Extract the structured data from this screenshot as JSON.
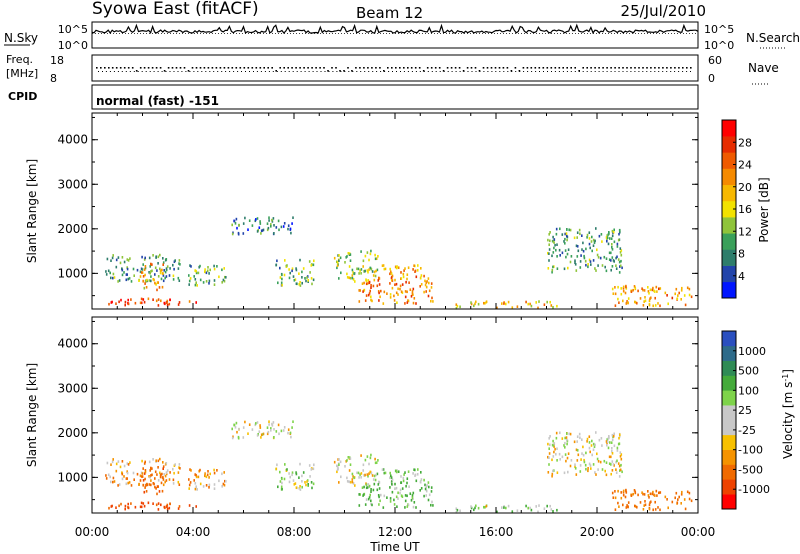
{
  "header": {
    "station": "Syowa East (fitACF)",
    "beam": "Beam 12",
    "date": "25/Jul/2010"
  },
  "top_panels": {
    "nsky_label": "N.Sky",
    "nsearch_label": "N.Search",
    "nsky_ticks": [
      "10^5",
      "10^0"
    ],
    "nsearch_ticks": [
      "10^5",
      "10^0"
    ],
    "freq_label_1": "Freq.",
    "freq_label_2": "[MHz]",
    "freq_ticks": [
      "18",
      "8"
    ],
    "nave_label": "Nave",
    "nave_ticks": [
      "60",
      "0"
    ],
    "cpid_label": "CPID",
    "cpid_value": "normal (fast) -151"
  },
  "colorbars": {
    "power": {
      "label": "Power [dB]",
      "ticks": [
        "28",
        "24",
        "20",
        "16",
        "12",
        "8",
        "4"
      ],
      "colors": [
        "#0015ff",
        "#2244aa",
        "#2e7d6b",
        "#3aa05a",
        "#8fc43a",
        "#f2e200",
        "#f7b800",
        "#f58a00",
        "#ef5a00",
        "#e62c00",
        "#ff0000"
      ]
    },
    "velocity": {
      "label": "Velocity [m s-1]",
      "label_main": "Velocity [m s",
      "label_sup": "-1",
      "label_end": "]",
      "ticks": [
        "1000",
        "500",
        "100",
        "25",
        "-25",
        "-100",
        "-500",
        "-1000"
      ],
      "colors": [
        "#2a4fbf",
        "#2e6b8a",
        "#2f8b55",
        "#44aa3a",
        "#7ed34a",
        "#c8c8c8",
        "#c8c8c8",
        "#f7c000",
        "#f59300",
        "#f06a00",
        "#ee4200",
        "#ff0000"
      ]
    }
  },
  "chart_data": {
    "type": "heatmap",
    "xlabel": "Time UT",
    "ylabel": "Slant Range [km]",
    "x_ticks": [
      "00:00",
      "04:00",
      "08:00",
      "12:00",
      "16:00",
      "20:00",
      "00:00"
    ],
    "y_ticks": [
      "1000",
      "2000",
      "3000",
      "4000"
    ],
    "xlim_hours": [
      0,
      24
    ],
    "ylim_km": [
      200,
      4600
    ],
    "panels": [
      "Power [dB]",
      "Velocity [m s-1]"
    ],
    "echo_regions": [
      {
        "t0": 0.3,
        "t1": 4.2,
        "r0": 250,
        "r1": 420,
        "power": 26,
        "velocity": -300
      },
      {
        "t0": 0.5,
        "t1": 3.5,
        "r0": 800,
        "r1": 1400,
        "power": 8,
        "velocity": -80
      },
      {
        "t0": 1.8,
        "t1": 2.8,
        "r0": 600,
        "r1": 1200,
        "power": 18,
        "velocity": -200
      },
      {
        "t0": 3.8,
        "t1": 5.3,
        "r0": 700,
        "r1": 1200,
        "power": 10,
        "velocity": -60
      },
      {
        "t0": 5.5,
        "t1": 8.0,
        "r0": 1850,
        "r1": 2250,
        "power": 6,
        "velocity": 0
      },
      {
        "t0": 7.2,
        "t1": 8.8,
        "r0": 700,
        "r1": 1300,
        "power": 10,
        "velocity": 50
      },
      {
        "t0": 9.5,
        "t1": 11.3,
        "r0": 800,
        "r1": 1500,
        "power": 12,
        "velocity": 10
      },
      {
        "t0": 10.5,
        "t1": 13.5,
        "r0": 300,
        "r1": 900,
        "power": 22,
        "velocity": 110
      },
      {
        "t0": 11.3,
        "t1": 13.2,
        "r0": 900,
        "r1": 1200,
        "power": 20,
        "velocity": 80
      },
      {
        "t0": 14.3,
        "t1": 16.0,
        "r0": 200,
        "r1": 350,
        "power": 16,
        "velocity": 40
      },
      {
        "t0": 16.0,
        "t1": 18.5,
        "r0": 200,
        "r1": 350,
        "power": 18,
        "velocity": 60
      },
      {
        "t0": 18.0,
        "t1": 21.0,
        "r0": 1000,
        "r1": 2000,
        "power": 8,
        "velocity": 0
      },
      {
        "t0": 20.5,
        "t1": 23.8,
        "r0": 250,
        "r1": 700,
        "power": 20,
        "velocity": -150
      }
    ]
  }
}
